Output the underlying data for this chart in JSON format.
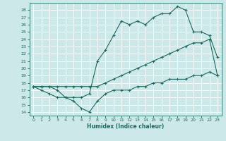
{
  "xlabel": "Humidex (Indice chaleur)",
  "ylabel": "",
  "bg_color": "#cce8e8",
  "grid_color": "#ffffff",
  "line_color": "#1a6b5e",
  "marker_color": "#1a6b5e",
  "xlim": [
    -0.5,
    23.5
  ],
  "ylim": [
    13.5,
    29.0
  ],
  "xticks": [
    0,
    1,
    2,
    3,
    4,
    5,
    6,
    7,
    8,
    9,
    10,
    11,
    12,
    13,
    14,
    15,
    16,
    17,
    18,
    19,
    20,
    21,
    22,
    23
  ],
  "yticks": [
    14,
    15,
    16,
    17,
    18,
    19,
    20,
    21,
    22,
    23,
    24,
    25,
    26,
    27,
    28
  ],
  "curve1": {
    "x": [
      0,
      1,
      2,
      3,
      4,
      5,
      6,
      7,
      8,
      9,
      10,
      11,
      12,
      13,
      14,
      15,
      16,
      17,
      18,
      19,
      20,
      21,
      22,
      23
    ],
    "y": [
      17.5,
      17.5,
      17.5,
      17.5,
      17.5,
      17.5,
      17.5,
      17.5,
      17.5,
      18,
      18.5,
      19,
      19.5,
      20,
      20.5,
      21,
      21.5,
      22,
      22.5,
      23,
      23.5,
      23.5,
      24,
      19
    ]
  },
  "curve2": {
    "x": [
      0,
      1,
      2,
      3,
      4,
      5,
      6,
      7,
      8,
      9,
      10,
      11,
      12,
      13,
      14,
      15,
      16,
      17,
      18,
      19,
      20,
      21,
      22,
      23
    ],
    "y": [
      17.5,
      17,
      16.5,
      16,
      16,
      15.5,
      14.5,
      14,
      15.5,
      16.5,
      17,
      17,
      17,
      17.5,
      17.5,
      18,
      18,
      18.5,
      18.5,
      18.5,
      19,
      19,
      19.5,
      19
    ]
  },
  "curve3": {
    "x": [
      0,
      1,
      2,
      3,
      4,
      5,
      6,
      7,
      8,
      9,
      10,
      11,
      12,
      13,
      14,
      15,
      16,
      17,
      18,
      19,
      20,
      21,
      22,
      23
    ],
    "y": [
      17.5,
      17.5,
      17.5,
      17,
      16,
      16,
      16,
      16.5,
      21,
      22.5,
      24.5,
      26.5,
      26,
      26.5,
      26,
      27,
      27.5,
      27.5,
      28.5,
      28,
      25,
      25,
      24.5,
      21.5
    ]
  }
}
